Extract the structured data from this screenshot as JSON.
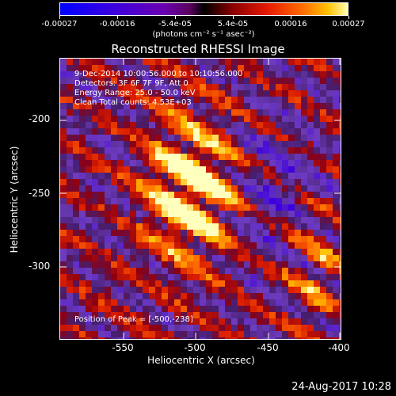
{
  "colorbar": {
    "tick_labels": [
      "-0.00027",
      "-0.00016",
      "-5.4e-05",
      "5.4e-05",
      "0.00016",
      "0.00027"
    ],
    "units": "(photons cm⁻² s⁻¹ asec⁻²)",
    "colors": [
      "#0000ff",
      "#6a00b0",
      "#000000",
      "#e61a00",
      "#ff6a00",
      "#ffffb0"
    ]
  },
  "title": "Reconstructed RHESSI Image",
  "info": {
    "time": "9-Dec-2014 10:00:56.000 to 10:10:56.000",
    "detectors": "Detectors: 3F 6F 7F 9F, Att 0",
    "energy": "Energy Range: 25.0 - 50.0 keV",
    "clean": "Clean     Total counts: 4.53E+03",
    "peak": "Position of Peak = [-500,-238]"
  },
  "x_axis": {
    "label": "Heliocentric X (arcsec)",
    "ticks": [
      "-550",
      "-500",
      "-450",
      "-400"
    ],
    "range": [
      -592,
      -400
    ]
  },
  "y_axis": {
    "label": "Heliocentric Y (arcsec)",
    "ticks": [
      "-200",
      "-250",
      "-300"
    ],
    "range": [
      -344,
      -168
    ]
  },
  "footer": "24-Aug-2017 10:28"
}
